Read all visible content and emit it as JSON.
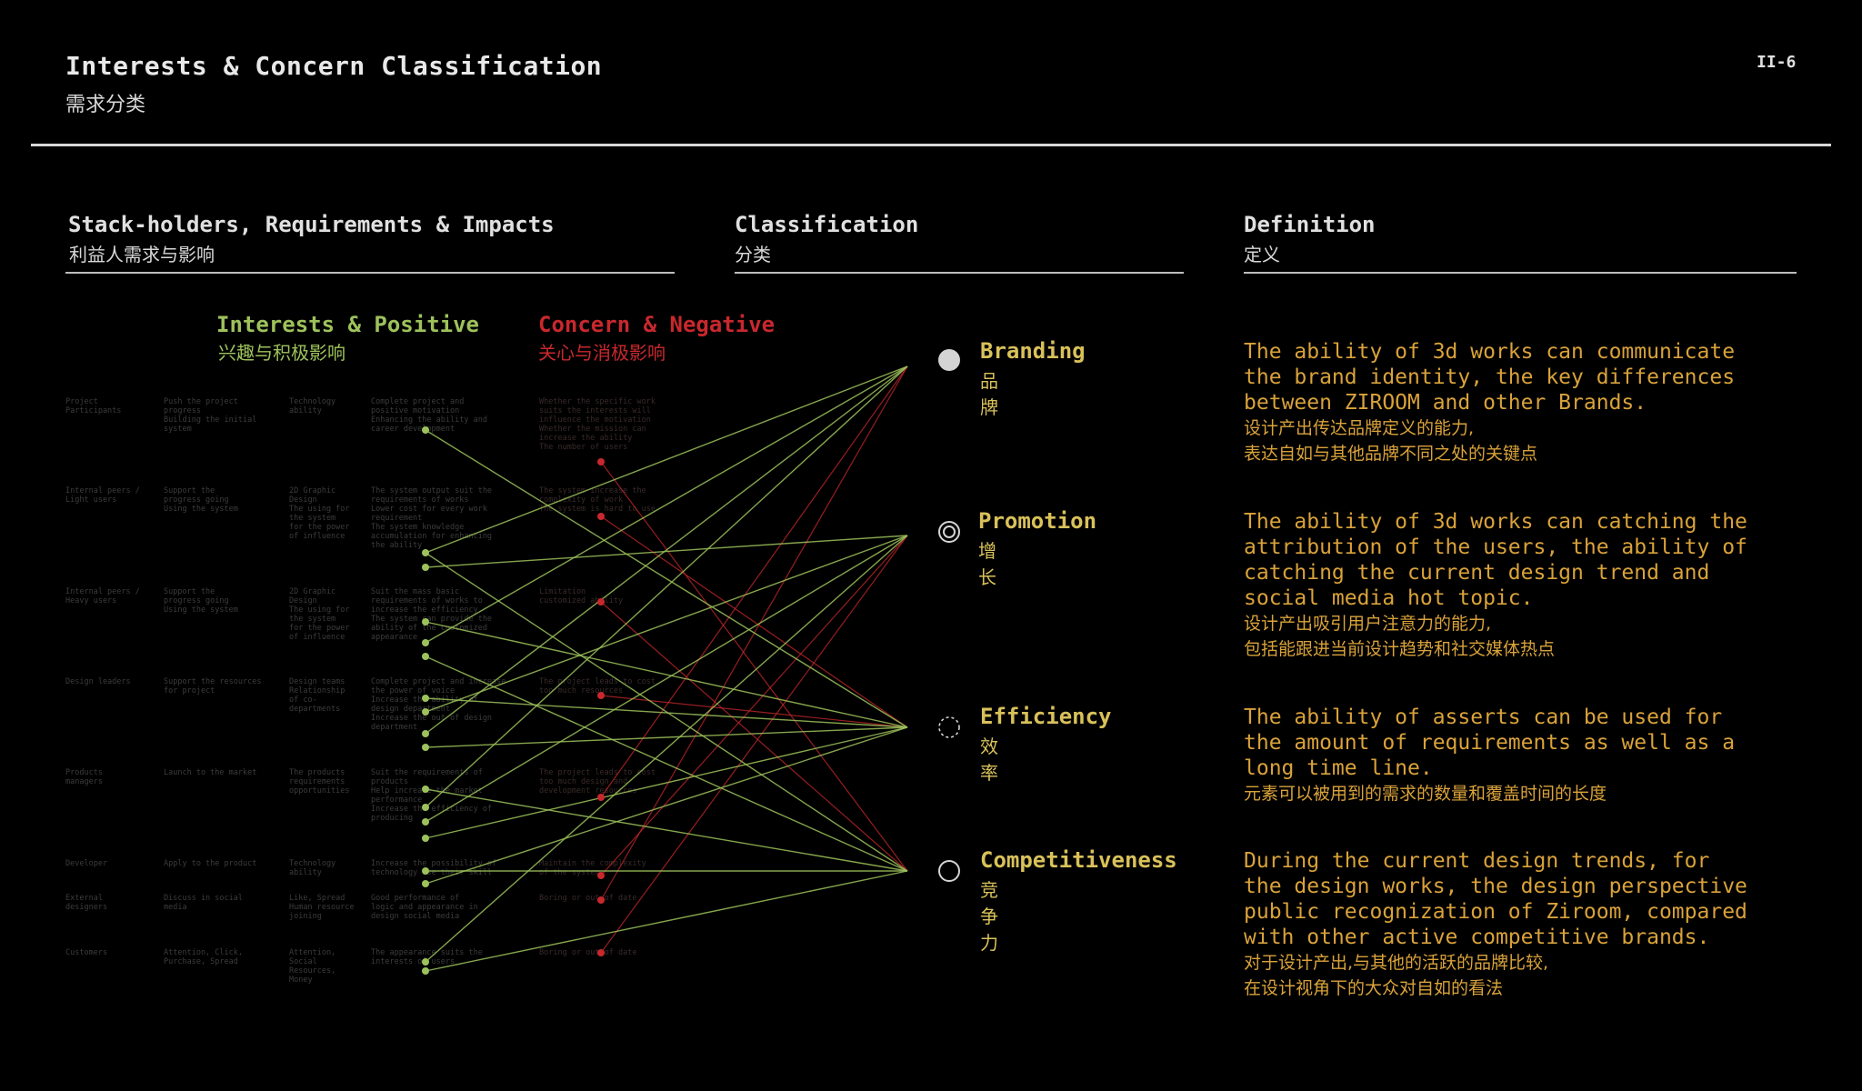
{
  "header": {
    "title": "Interests & Concern Classification",
    "title_cn": "需求分类",
    "page_num": "II-6"
  },
  "sections": {
    "stakeholders": {
      "title": "Stack-holders, Requirements & Impacts",
      "title_cn": "利益人需求与影响"
    },
    "classification": {
      "title": "Classification",
      "title_cn": "分类"
    },
    "definition": {
      "title": "Definition",
      "title_cn": "定义"
    }
  },
  "groups": {
    "positive": {
      "title": "Interests & Positive",
      "title_cn": "兴趣与积极影响",
      "color": "#9dc25b"
    },
    "negative": {
      "title": "Concern & Negative",
      "title_cn": "关心与消极影响",
      "color": "#c8282d"
    }
  },
  "faint_rows": [
    {
      "c1": "Project\nParticipants",
      "c2": "Push the project\nprogress\nBuilding the initial\nsystem",
      "c3": "Technology\nability",
      "c4": "Complete project and\npositive motivation\nEnhancing the ability and\ncareer development",
      "c5": "Whether the specific work\nsuits the interests will\ninfluence the motivation\nWhether the mission can\nincrease the ability\nThe number of users"
    },
    {
      "c1": "Internal peers /\nLight users",
      "c2": "Support the\nprogress going\nUsing the system",
      "c3": "2D Graphic\nDesign\nThe using for\nthe system\nfor the power\nof influence",
      "c4": "The system output suit the\nrequirements of works\nLower cost for every work\nrequirement\nThe system knowledge\naccumulation for enhancing\nthe ability",
      "c5": "The system increase the\ncomplexity of work\nThe system is hard to use"
    },
    {
      "c1": "Internal peers /\nHeavy users",
      "c2": "Support the\nprogress going\nUsing the system",
      "c3": "2D Graphic\nDesign\nThe using for\nthe system\nfor the power\nof influence",
      "c4": "Suit the mass basic\nrequirements of works to\nincrease the efficiency\nThe system can provide the\nability of the customized\nappearance",
      "c5": "Limitation\ncustomized ability"
    },
    {
      "c1": "Design leaders",
      "c2": "Support the resources\nfor project",
      "c3": "Design teams\nRelationship\nof co-\ndepartments",
      "c4": "Complete project and increase\nthe power of voice\nIncrease the ability of\ndesign department\nIncrease the out of design\ndepartment",
      "c5": "The project leads to cost\ntoo much resources"
    },
    {
      "c1": "Products\nmanagers",
      "c2": "Launch to the market",
      "c3": "The products\nrequirements\nopportunities",
      "c4": "Suit the requirements of\nproducts\nHelp increase the market\nperformance\nIncrease the efficiency of\nproducing",
      "c5": "The project leads to cost\ntoo much design and\ndevelopment resources"
    },
    {
      "c1": "Developer",
      "c2": "Apply to the product",
      "c3": "Technology\nability",
      "c4": "Increase the possibility of\ntechnology use their skill",
      "c5": "Maintain the complexity\nof the system"
    },
    {
      "c1": "External\ndesigners",
      "c2": "Discuss in social\nmedia",
      "c3": "Like, Spread\nHuman resource\njoining",
      "c4": "Good performance of\nlogic and appearance in\ndesign social media",
      "c5": "Boring or out of date"
    },
    {
      "c1": "Customers",
      "c2": "Attention, Click,\nPurchase, Spread",
      "c3": "Attention,\nSocial\nResources,\nMoney",
      "c4": "The appearance suits the\ninterests of users",
      "c5": "Boring or out of date"
    }
  ],
  "classes": [
    {
      "label": "Branding",
      "label_cn": "品牌",
      "marker": "filled",
      "def_en": "The ability of 3d works can communicate\nthe brand identity, the key differences\nbetween ZIROOM and other Brands.",
      "def_cn": "设计产出传达品牌定义的能力,\n表达自如与其他品牌不同之处的关键点"
    },
    {
      "label": "Promotion",
      "label_cn": "增长",
      "marker": "double-ring",
      "def_en": "The ability of 3d works can catching the\nattribution of the users, the ability of\ncatching the current design trend and\nsocial media hot topic.",
      "def_cn": "设计产出吸引用户注意力的能力,\n包括能跟进当前设计趋势和社交媒体热点"
    },
    {
      "label": "Efficiency",
      "label_cn": "效率",
      "marker": "dashed-ring",
      "def_en": "The ability of asserts can be used for\nthe amount of requirements as well as a\nlong time line.",
      "def_cn": "元素可以被用到的需求的数量和覆盖时间的长度"
    },
    {
      "label": "Competitiveness",
      "label_cn": "竞争力",
      "marker": "ring",
      "def_en": "During the current design trends, for\nthe design works, the design perspective\npublic recognization of Ziroom, compared\nwith other active competitive brands.",
      "def_cn": "对于设计产出,与其他的活跃的品牌比较,\n在设计视角下的大众对自如的看法"
    }
  ],
  "colors": {
    "positive": "#9dc25b",
    "negative": "#c8282d",
    "accent": "#d9c15a",
    "definition": "#d9a23a"
  }
}
